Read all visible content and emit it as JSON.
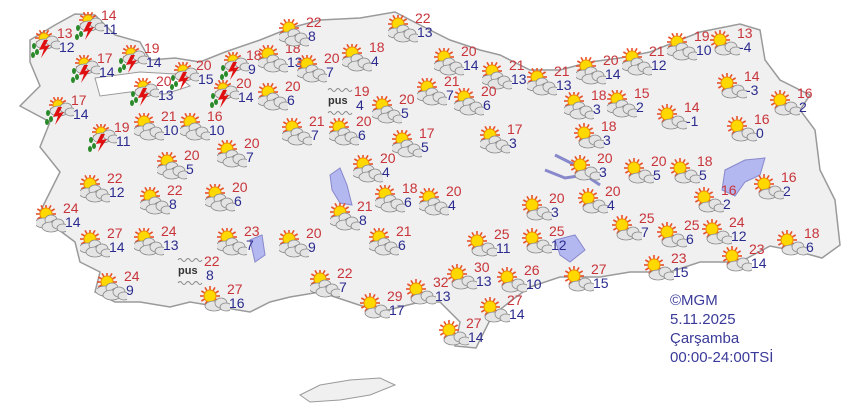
{
  "colors": {
    "max_temp": "#c8343a",
    "min_temp": "#2b2b8f",
    "land": "#f0f0f0",
    "lake": "#b4b8f0",
    "border": "#9a9a9a"
  },
  "fog_label": "pus",
  "info": {
    "copyright": "©MGM",
    "date": "5.11.2025",
    "day": "Çarşamba",
    "period": "00:00-24:00TSİ"
  },
  "stations": [
    {
      "type": "storm",
      "max": "13",
      "min": "12"
    },
    {
      "type": "storm",
      "max": "14",
      "min": "11"
    },
    {
      "type": "storm",
      "max": "17",
      "min": "14"
    },
    {
      "type": "storm",
      "max": "19",
      "min": "14"
    },
    {
      "type": "storm",
      "max": "20",
      "min": "13"
    },
    {
      "type": "storm",
      "max": "20",
      "min": "15"
    },
    {
      "type": "storm",
      "max": "18",
      "min": "9"
    },
    {
      "type": "storm",
      "max": "20",
      "min": "14"
    },
    {
      "type": "storm",
      "max": "17",
      "min": "14"
    },
    {
      "type": "storm",
      "max": "19",
      "min": "11"
    },
    {
      "type": "partly",
      "max": "21",
      "min": "10"
    },
    {
      "type": "partly",
      "max": "16",
      "min": "10"
    },
    {
      "type": "partly",
      "max": "18",
      "min": "13"
    },
    {
      "type": "partly",
      "max": "22",
      "min": "8"
    },
    {
      "type": "partly",
      "max": "20",
      "min": "7"
    },
    {
      "type": "partly",
      "max": "20",
      "min": "6"
    },
    {
      "type": "partly",
      "max": "18",
      "min": "4"
    },
    {
      "type": "fog",
      "max": "19",
      "min": "4"
    },
    {
      "type": "partly",
      "max": "20",
      "min": "5"
    },
    {
      "type": "partly",
      "max": "21",
      "min": "7"
    },
    {
      "type": "partly",
      "max": "20",
      "min": "6"
    },
    {
      "type": "partly",
      "max": "17",
      "min": "5"
    },
    {
      "type": "partly",
      "max": "22",
      "min": "13"
    },
    {
      "type": "partly",
      "max": "20",
      "min": "14"
    },
    {
      "type": "partly",
      "max": "21",
      "min": "13"
    },
    {
      "type": "partly",
      "max": "21",
      "min": "7"
    },
    {
      "type": "partly",
      "max": "20",
      "min": "6"
    },
    {
      "type": "partly",
      "max": "17",
      "min": "3"
    },
    {
      "type": "partly",
      "max": "21",
      "min": "13"
    },
    {
      "type": "partly",
      "max": "20",
      "min": "14"
    },
    {
      "type": "partly",
      "max": "21",
      "min": "12"
    },
    {
      "type": "partly",
      "max": "19",
      "min": "10"
    },
    {
      "type": "sunny",
      "max": "13",
      "min": "-4"
    },
    {
      "type": "sunny",
      "max": "14",
      "min": "-3"
    },
    {
      "type": "sunny",
      "max": "16",
      "min": "2"
    },
    {
      "type": "sunny",
      "max": "14",
      "min": "-1"
    },
    {
      "type": "sunny",
      "max": "16",
      "min": "0"
    },
    {
      "type": "partly",
      "max": "18",
      "min": "3"
    },
    {
      "type": "partly",
      "max": "15",
      "min": "2"
    },
    {
      "type": "sunny",
      "max": "18",
      "min": "3"
    },
    {
      "type": "sunny",
      "max": "20",
      "min": "3"
    },
    {
      "type": "sunny",
      "max": "20",
      "min": "4"
    },
    {
      "type": "sunny",
      "max": "20",
      "min": "5"
    },
    {
      "type": "sunny",
      "max": "18",
      "min": "5"
    },
    {
      "type": "sunny",
      "max": "16",
      "min": "2"
    },
    {
      "type": "sunny",
      "max": "16",
      "min": "2"
    },
    {
      "type": "sunny",
      "max": "20",
      "min": "3"
    },
    {
      "type": "sunny",
      "max": "25",
      "min": "7"
    },
    {
      "type": "sunny",
      "max": "25",
      "min": "6"
    },
    {
      "type": "sunny",
      "max": "24",
      "min": "12"
    },
    {
      "type": "sunny",
      "max": "23",
      "min": "14"
    },
    {
      "type": "sunny",
      "max": "18",
      "min": "6"
    },
    {
      "type": "sunny",
      "max": "23",
      "min": "15"
    },
    {
      "type": "sunny",
      "max": "25",
      "min": "12"
    },
    {
      "type": "sunny",
      "max": "27",
      "min": "15"
    },
    {
      "type": "sunny",
      "max": "25",
      "min": "11"
    },
    {
      "type": "sunny",
      "max": "30",
      "min": "13"
    },
    {
      "type": "sunny",
      "max": "26",
      "min": "10"
    },
    {
      "type": "sunny",
      "max": "27",
      "min": "14"
    },
    {
      "type": "sunny",
      "max": "32",
      "min": "13"
    },
    {
      "type": "sunny",
      "max": "29",
      "min": "17"
    },
    {
      "type": "sunny",
      "max": "27",
      "min": "14"
    },
    {
      "type": "partly",
      "max": "22",
      "min": "7"
    },
    {
      "type": "partly",
      "max": "20",
      "min": "9"
    },
    {
      "type": "partly",
      "max": "21",
      "min": "6"
    },
    {
      "type": "partly",
      "max": "21",
      "min": "8"
    },
    {
      "type": "partly",
      "max": "18",
      "min": "6"
    },
    {
      "type": "partly",
      "max": "20",
      "min": "4"
    },
    {
      "type": "partly",
      "max": "20",
      "min": "4"
    },
    {
      "type": "partly",
      "max": "20",
      "min": "7"
    },
    {
      "type": "partly",
      "max": "20",
      "min": "5"
    },
    {
      "type": "partly",
      "max": "22",
      "min": "12"
    },
    {
      "type": "partly",
      "max": "22",
      "min": "8"
    },
    {
      "type": "partly",
      "max": "20",
      "min": "6"
    },
    {
      "type": "partly",
      "max": "24",
      "min": "14"
    },
    {
      "type": "partly",
      "max": "27",
      "min": "14"
    },
    {
      "type": "partly",
      "max": "24",
      "min": "13"
    },
    {
      "type": "partly",
      "max": "23",
      "min": "7"
    },
    {
      "type": "fog",
      "max": "22",
      "min": "8"
    },
    {
      "type": "partly",
      "max": "24",
      "min": "9"
    },
    {
      "type": "sunny",
      "max": "27",
      "min": "16"
    }
  ]
}
